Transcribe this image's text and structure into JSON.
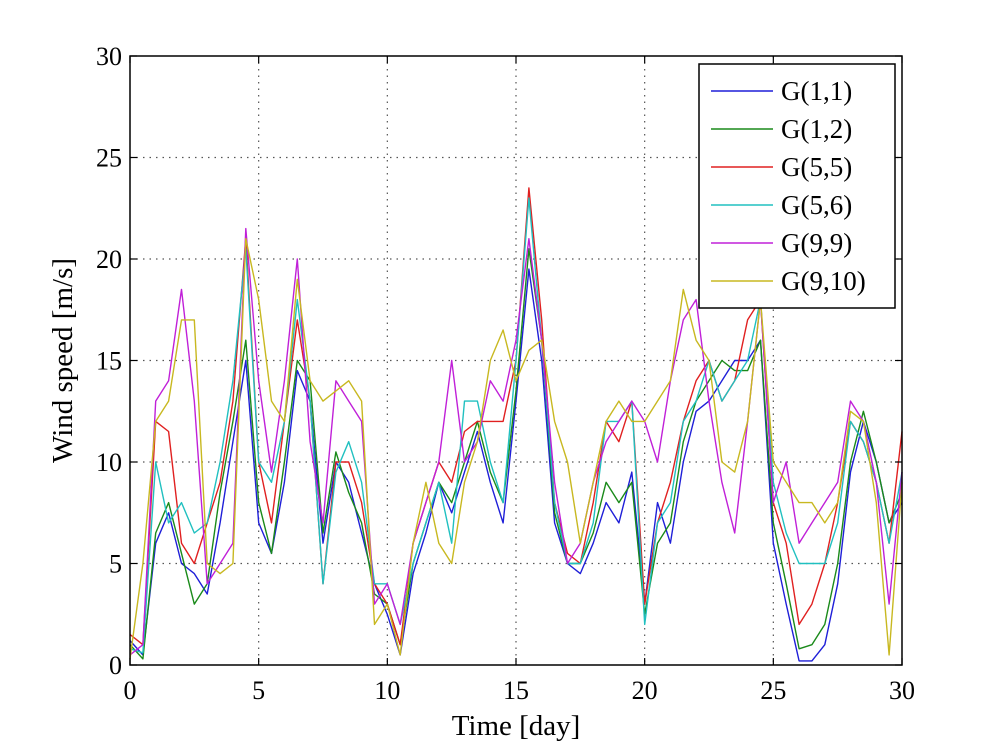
{
  "chart_data": {
    "type": "line",
    "title": "",
    "xlabel": "Time [day]",
    "ylabel": "Wind speed [m/s]",
    "xlim": [
      0,
      30
    ],
    "ylim": [
      0,
      30
    ],
    "xticks": [
      0,
      5,
      10,
      15,
      20,
      25,
      30
    ],
    "yticks": [
      0,
      5,
      10,
      15,
      20,
      25,
      30
    ],
    "grid": true,
    "legend_position": "top-right",
    "series": [
      {
        "name": "G(1,1)",
        "color": "#1f1fd8",
        "x": [
          0,
          0.5,
          1,
          1.5,
          2,
          2.5,
          3,
          3.5,
          4,
          4.5,
          5,
          5.5,
          6,
          6.5,
          7,
          7.5,
          8,
          8.5,
          9,
          9.5,
          10,
          10.5,
          11,
          11.5,
          12,
          12.5,
          13,
          13.5,
          14,
          14.5,
          15,
          15.5,
          16,
          16.5,
          17,
          17.5,
          18,
          18.5,
          19,
          19.5,
          20,
          20.5,
          21,
          21.5,
          22,
          22.5,
          23,
          23.5,
          24,
          24.5,
          25,
          25.5,
          26,
          26.5,
          27,
          27.5,
          28,
          28.5,
          29,
          29.5,
          30
        ],
        "y": [
          1.2,
          0.5,
          6,
          7.5,
          5,
          4.5,
          3.5,
          7,
          11,
          15,
          7,
          5.5,
          9,
          14.5,
          13,
          6,
          10,
          9,
          6.5,
          4,
          2.5,
          0.5,
          4.5,
          6.5,
          9,
          7.5,
          9.5,
          11.5,
          9,
          7,
          13,
          19.5,
          15,
          7,
          5,
          4.5,
          6,
          8,
          7,
          9.5,
          3,
          8,
          6,
          10,
          12.5,
          13,
          14,
          15,
          15,
          16,
          6,
          3,
          0.2,
          0.2,
          1,
          4,
          9.5,
          12,
          10,
          7,
          8
        ]
      },
      {
        "name": "G(1,2)",
        "color": "#1a8a1a",
        "x": [
          0,
          0.5,
          1,
          1.5,
          2,
          2.5,
          3,
          3.5,
          4,
          4.5,
          5,
          5.5,
          6,
          6.5,
          7,
          7.5,
          8,
          8.5,
          9,
          9.5,
          10,
          10.5,
          11,
          11.5,
          12,
          12.5,
          13,
          13.5,
          14,
          14.5,
          15,
          15.5,
          16,
          16.5,
          17,
          17.5,
          18,
          18.5,
          19,
          19.5,
          20,
          20.5,
          21,
          21.5,
          22,
          22.5,
          23,
          23.5,
          24,
          24.5,
          25,
          25.5,
          26,
          26.5,
          27,
          27.5,
          28,
          28.5,
          29,
          29.5,
          30
        ],
        "y": [
          1,
          0.3,
          6.5,
          8,
          5.5,
          3,
          4,
          8.5,
          12,
          16,
          8,
          5.5,
          10,
          15,
          14,
          6.5,
          10.5,
          8.5,
          7,
          3.5,
          3,
          1,
          5,
          7,
          9,
          8,
          10,
          12,
          9.5,
          8,
          13.5,
          20.5,
          16,
          7.5,
          5,
          5,
          6.5,
          9,
          8,
          9,
          2.5,
          6,
          7,
          11,
          13,
          14,
          15,
          14.5,
          14.5,
          16,
          7,
          4,
          0.8,
          1,
          2,
          5,
          10,
          12.5,
          10,
          7,
          8.5
        ]
      },
      {
        "name": "G(5,5)",
        "color": "#e02020",
        "x": [
          0,
          0.5,
          1,
          1.5,
          2,
          2.5,
          3,
          3.5,
          4,
          4.5,
          5,
          5.5,
          6,
          6.5,
          7,
          7.5,
          8,
          8.5,
          9,
          9.5,
          10,
          10.5,
          11,
          11.5,
          12,
          12.5,
          13,
          13.5,
          14,
          14.5,
          15,
          15.5,
          16,
          16.5,
          17,
          17.5,
          18,
          18.5,
          19,
          19.5,
          20,
          20.5,
          21,
          21.5,
          22,
          22.5,
          23,
          23.5,
          24,
          24.5,
          25,
          25.5,
          26,
          26.5,
          27,
          27.5,
          28,
          28.5,
          29,
          29.5,
          30
        ],
        "y": [
          1.5,
          1,
          12,
          11.5,
          6,
          5,
          7,
          9,
          13,
          21,
          10,
          7,
          12,
          17,
          13,
          4,
          10,
          10,
          8,
          4,
          3,
          1,
          6,
          8,
          10,
          9,
          11.5,
          12,
          12,
          12,
          15,
          23.5,
          17,
          8,
          5.5,
          5,
          8,
          12,
          11,
          13,
          3,
          7,
          9,
          12,
          14,
          15,
          13,
          14,
          17,
          18,
          8,
          6,
          2,
          3,
          5,
          8,
          12,
          11,
          9,
          6,
          11.5
        ]
      },
      {
        "name": "G(5,6)",
        "color": "#20c0c0",
        "x": [
          0,
          0.5,
          1,
          1.5,
          2,
          2.5,
          3,
          3.5,
          4,
          4.5,
          5,
          5.5,
          6,
          6.5,
          7,
          7.5,
          8,
          8.5,
          9,
          9.5,
          10,
          10.5,
          11,
          11.5,
          12,
          12.5,
          13,
          13.5,
          14,
          14.5,
          15,
          15.5,
          16,
          16.5,
          17,
          17.5,
          18,
          18.5,
          19,
          19.5,
          20,
          20.5,
          21,
          21.5,
          22,
          22.5,
          23,
          23.5,
          24,
          24.5,
          25,
          25.5,
          26,
          26.5,
          27,
          27.5,
          28,
          28.5,
          29,
          29.5,
          30
        ],
        "y": [
          0.8,
          0.6,
          10,
          7,
          8,
          6.5,
          7,
          10,
          14,
          20.5,
          10,
          9,
          12,
          18,
          13,
          4,
          9.5,
          11,
          9,
          4,
          4,
          2,
          5,
          7,
          9,
          6,
          13,
          13,
          10,
          8,
          15,
          23,
          16,
          8,
          5,
          5,
          7,
          12,
          12,
          13,
          2,
          7,
          8,
          12,
          13,
          15,
          13,
          14,
          15,
          18,
          9,
          6.5,
          5,
          5,
          5,
          7,
          12,
          11,
          9,
          6,
          9.5
        ]
      },
      {
        "name": "G(9,9)",
        "color": "#c020d8",
        "x": [
          0,
          0.5,
          1,
          1.5,
          2,
          2.5,
          3,
          3.5,
          4,
          4.5,
          5,
          5.5,
          6,
          6.5,
          7,
          7.5,
          8,
          8.5,
          9,
          9.5,
          10,
          10.5,
          11,
          11.5,
          12,
          12.5,
          13,
          13.5,
          14,
          14.5,
          15,
          15.5,
          16,
          16.5,
          17,
          17.5,
          18,
          18.5,
          19,
          19.5,
          20,
          20.5,
          21,
          21.5,
          22,
          22.5,
          23,
          23.5,
          24,
          24.5,
          25,
          25.5,
          26,
          26.5,
          27,
          27.5,
          28,
          28.5,
          29,
          29.5,
          30
        ],
        "y": [
          0.5,
          1,
          13,
          14,
          18.5,
          13,
          4,
          5,
          6,
          21.5,
          14,
          9.5,
          14,
          20,
          11,
          7,
          14,
          13,
          12,
          3,
          4,
          2,
          6,
          8,
          10,
          15,
          10,
          11,
          14,
          13,
          16,
          21,
          16,
          9,
          5,
          6,
          9,
          11,
          12,
          13,
          12,
          10,
          14,
          17,
          18,
          13,
          9,
          6.5,
          12,
          18,
          8,
          10,
          6,
          7,
          8,
          9,
          13,
          12,
          9,
          3,
          9.5
        ]
      },
      {
        "name": "G(9,10)",
        "color": "#c8b820",
        "x": [
          0,
          0.5,
          1,
          1.5,
          2,
          2.5,
          3,
          3.5,
          4,
          4.5,
          5,
          5.5,
          6,
          6.5,
          7,
          7.5,
          8,
          8.5,
          9,
          9.5,
          10,
          10.5,
          11,
          11.5,
          12,
          12.5,
          13,
          13.5,
          14,
          14.5,
          15,
          15.5,
          16,
          16.5,
          17,
          17.5,
          18,
          18.5,
          19,
          19.5,
          20,
          20.5,
          21,
          21.5,
          22,
          22.5,
          23,
          23.5,
          24,
          24.5,
          25,
          25.5,
          26,
          26.5,
          27,
          27.5,
          28,
          28.5,
          29,
          29.5,
          30
        ],
        "y": [
          0.3,
          5,
          12,
          13,
          17,
          17,
          5,
          4.5,
          5,
          21,
          18,
          13,
          12,
          19,
          14,
          13,
          13.5,
          14,
          13,
          2,
          3,
          0.5,
          6,
          9,
          6,
          5,
          9,
          11,
          15,
          16.5,
          14,
          15.5,
          16,
          12,
          10,
          6,
          9,
          12,
          13,
          12,
          12,
          13,
          14,
          18.5,
          16,
          15,
          10,
          9.5,
          12,
          18,
          10,
          9,
          8,
          8,
          7,
          8,
          12.5,
          12,
          8,
          0.5,
          9
        ]
      }
    ]
  }
}
